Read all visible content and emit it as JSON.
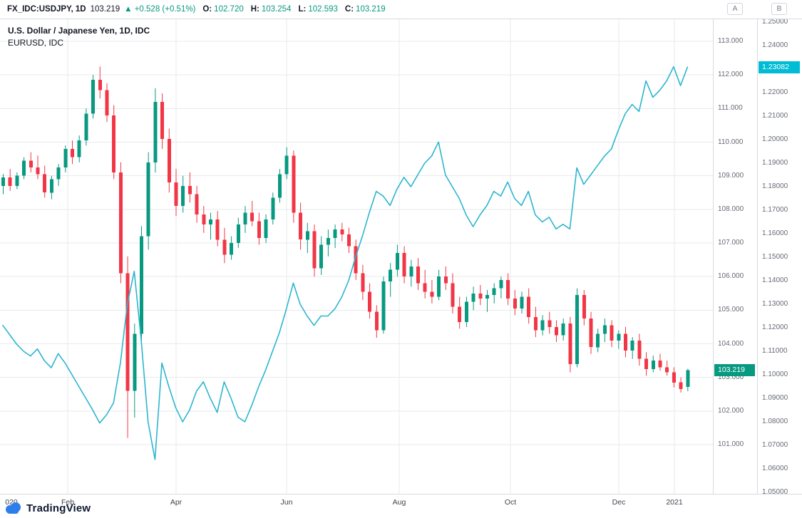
{
  "header": {
    "symbol": "FX_IDC:USDJPY, 1D",
    "last_price": "103.219",
    "change": "▲ +0.528 (+0.51%)",
    "o_label": "O:",
    "o_value": "102.720",
    "h_label": "H:",
    "h_value": "103.254",
    "l_label": "L:",
    "l_value": "102.593",
    "c_label": "C:",
    "c_value": "103.219"
  },
  "legend": {
    "line1": "U.S. Dollar / Japanese Yen, 1D, IDC",
    "line2": "EURUSD, IDC"
  },
  "colors": {
    "up": "#089981",
    "down": "#f23645",
    "line": "#2cb5cf",
    "badge_a": "#089981",
    "badge_b": "#00bcd4",
    "grid": "#e7eaee",
    "axis_text": "#676b76",
    "border": "#d6dadf"
  },
  "axes": {
    "a_labels": [
      "113.000",
      "112.000",
      "111.000",
      "110.000",
      "109.000",
      "108.000",
      "107.000",
      "106.000",
      "105.000",
      "104.000",
      "103.000",
      "102.000",
      "101.000"
    ],
    "b_labels": [
      "1.25000",
      "1.24000",
      "1.23000",
      "1.22000",
      "1.21000",
      "1.20000",
      "1.19000",
      "1.18000",
      "1.17000",
      "1.16000",
      "1.15000",
      "1.14000",
      "1.13000",
      "1.12000",
      "1.11000",
      "1.10000",
      "1.09000",
      "1.08000",
      "1.07000",
      "1.06000",
      "1.05000"
    ],
    "a_badge": "103.219",
    "b_badge": "1.23082",
    "a_button": "A",
    "b_button": "B",
    "time_labels": [
      {
        "text": "020",
        "x": 16
      },
      {
        "text": "Feb",
        "x": 95
      },
      {
        "text": "Apr",
        "x": 247
      },
      {
        "text": "Jun",
        "x": 402
      },
      {
        "text": "Aug",
        "x": 560
      },
      {
        "text": "Oct",
        "x": 716
      },
      {
        "text": "Dec",
        "x": 868
      },
      {
        "text": "2021",
        "x": 946
      }
    ]
  },
  "logo": {
    "text": "TradingView"
  },
  "chart_data": {
    "type": "mixed",
    "title": "U.S. Dollar / Japanese Yen, 1D, IDC",
    "overlay": "EURUSD, IDC",
    "grid": true,
    "legend_position": "top-left",
    "x_axis": {
      "start": "Jan 2020",
      "end": "Jan 2021",
      "tick_labels": [
        "020",
        "Feb",
        "Apr",
        "Jun",
        "Aug",
        "Oct",
        "Dec",
        "2021"
      ]
    },
    "scale_a": {
      "name": "USDJPY",
      "min": 101.0,
      "max": 113.0,
      "tick_step": 1.0,
      "last": 103.219
    },
    "scale_b": {
      "name": "EURUSD",
      "min": 1.05,
      "max": 1.25,
      "tick_step": 0.01,
      "last": 1.23082
    },
    "series": [
      {
        "name": "USD/JPY",
        "type": "candlestick",
        "scale": "A",
        "ohlc": [
          [
            108.7,
            109.05,
            108.45,
            108.95
          ],
          [
            108.95,
            109.2,
            108.55,
            108.7
          ],
          [
            108.7,
            109.1,
            108.6,
            109.0
          ],
          [
            109.0,
            109.55,
            108.9,
            109.45
          ],
          [
            109.45,
            109.7,
            109.1,
            109.25
          ],
          [
            109.25,
            109.6,
            108.9,
            109.05
          ],
          [
            109.05,
            109.3,
            108.35,
            108.5
          ],
          [
            108.5,
            109.0,
            108.3,
            108.9
          ],
          [
            108.9,
            109.35,
            108.7,
            109.25
          ],
          [
            109.25,
            109.9,
            109.1,
            109.8
          ],
          [
            109.8,
            110.05,
            109.35,
            109.55
          ],
          [
            109.55,
            110.2,
            109.4,
            110.05
          ],
          [
            110.05,
            111.0,
            109.9,
            110.85
          ],
          [
            110.85,
            112.0,
            110.7,
            111.85
          ],
          [
            111.85,
            112.25,
            111.3,
            111.55
          ],
          [
            111.55,
            111.75,
            110.6,
            110.8
          ],
          [
            110.8,
            111.1,
            108.9,
            109.1
          ],
          [
            109.1,
            109.4,
            105.8,
            106.1
          ],
          [
            106.1,
            106.6,
            101.2,
            102.6
          ],
          [
            102.6,
            104.6,
            101.8,
            104.3
          ],
          [
            104.3,
            107.5,
            103.9,
            107.2
          ],
          [
            107.2,
            109.7,
            106.8,
            109.4
          ],
          [
            109.4,
            111.6,
            109.1,
            111.2
          ],
          [
            111.2,
            111.45,
            109.8,
            110.1
          ],
          [
            110.1,
            110.4,
            108.5,
            108.8
          ],
          [
            108.8,
            109.2,
            107.8,
            108.1
          ],
          [
            108.1,
            109.0,
            107.9,
            108.7
          ],
          [
            108.7,
            109.1,
            108.2,
            108.45
          ],
          [
            108.45,
            108.7,
            107.6,
            107.85
          ],
          [
            107.85,
            108.1,
            107.3,
            107.55
          ],
          [
            107.55,
            107.9,
            107.1,
            107.7
          ],
          [
            107.7,
            107.95,
            106.9,
            107.1
          ],
          [
            107.1,
            107.45,
            106.4,
            106.65
          ],
          [
            106.65,
            107.2,
            106.5,
            107.0
          ],
          [
            107.0,
            107.75,
            106.85,
            107.55
          ],
          [
            107.55,
            108.1,
            107.3,
            107.9
          ],
          [
            107.9,
            108.25,
            107.5,
            107.65
          ],
          [
            107.65,
            107.9,
            106.95,
            107.15
          ],
          [
            107.15,
            107.85,
            107.0,
            107.7
          ],
          [
            107.7,
            108.5,
            107.55,
            108.35
          ],
          [
            108.35,
            109.2,
            108.2,
            109.05
          ],
          [
            109.05,
            109.85,
            108.9,
            109.6
          ],
          [
            109.6,
            109.75,
            107.6,
            107.9
          ],
          [
            107.9,
            108.2,
            106.8,
            107.1
          ],
          [
            107.1,
            107.6,
            106.7,
            107.35
          ],
          [
            107.35,
            107.55,
            106.0,
            106.25
          ],
          [
            106.25,
            107.2,
            106.05,
            106.95
          ],
          [
            106.95,
            107.4,
            106.6,
            107.15
          ],
          [
            107.15,
            107.55,
            106.85,
            107.4
          ],
          [
            107.4,
            107.6,
            107.05,
            107.25
          ],
          [
            107.25,
            107.45,
            106.7,
            106.9
          ],
          [
            106.9,
            107.1,
            105.9,
            106.1
          ],
          [
            106.1,
            106.35,
            105.3,
            105.55
          ],
          [
            105.55,
            105.8,
            104.75,
            104.95
          ],
          [
            104.95,
            105.15,
            104.18,
            104.4
          ],
          [
            104.4,
            106.0,
            104.3,
            105.85
          ],
          [
            105.85,
            106.4,
            105.4,
            106.2
          ],
          [
            106.2,
            106.95,
            106.0,
            106.7
          ],
          [
            106.7,
            106.9,
            105.8,
            106.0
          ],
          [
            106.0,
            106.5,
            105.7,
            106.3
          ],
          [
            106.3,
            106.55,
            105.6,
            105.8
          ],
          [
            105.8,
            106.2,
            105.35,
            105.55
          ],
          [
            105.55,
            105.9,
            105.2,
            105.4
          ],
          [
            105.4,
            106.2,
            105.3,
            106.0
          ],
          [
            106.0,
            106.3,
            105.6,
            105.8
          ],
          [
            105.8,
            106.1,
            104.9,
            105.1
          ],
          [
            105.1,
            105.4,
            104.45,
            104.65
          ],
          [
            104.65,
            105.4,
            104.5,
            105.25
          ],
          [
            105.25,
            105.7,
            105.0,
            105.5
          ],
          [
            105.5,
            105.75,
            105.15,
            105.35
          ],
          [
            105.35,
            105.6,
            104.95,
            105.45
          ],
          [
            105.45,
            105.8,
            105.2,
            105.65
          ],
          [
            105.65,
            106.0,
            105.35,
            105.9
          ],
          [
            105.9,
            106.1,
            105.15,
            105.35
          ],
          [
            105.35,
            105.6,
            104.85,
            105.05
          ],
          [
            105.05,
            105.55,
            104.9,
            105.4
          ],
          [
            105.4,
            105.65,
            104.6,
            104.8
          ],
          [
            104.8,
            105.1,
            104.2,
            104.4
          ],
          [
            104.4,
            104.85,
            104.25,
            104.7
          ],
          [
            104.7,
            104.95,
            104.3,
            104.5
          ],
          [
            104.5,
            104.7,
            104.05,
            104.25
          ],
          [
            104.25,
            104.75,
            104.1,
            104.6
          ],
          [
            104.6,
            104.8,
            103.15,
            103.4
          ],
          [
            103.4,
            105.65,
            103.3,
            105.45
          ],
          [
            105.45,
            105.6,
            104.55,
            104.75
          ],
          [
            104.75,
            104.95,
            103.7,
            103.9
          ],
          [
            103.9,
            104.45,
            103.75,
            104.3
          ],
          [
            104.3,
            104.75,
            104.05,
            104.55
          ],
          [
            104.55,
            104.7,
            103.9,
            104.1
          ],
          [
            104.1,
            104.4,
            103.85,
            104.3
          ],
          [
            104.3,
            104.5,
            103.6,
            103.8
          ],
          [
            103.8,
            104.2,
            103.55,
            104.1
          ],
          [
            104.1,
            104.3,
            103.35,
            103.55
          ],
          [
            103.55,
            103.75,
            103.05,
            103.25
          ],
          [
            103.25,
            103.65,
            103.15,
            103.5
          ],
          [
            103.5,
            103.7,
            103.2,
            103.3
          ],
          [
            103.3,
            103.5,
            103.05,
            103.15
          ],
          [
            103.15,
            103.3,
            102.7,
            102.85
          ],
          [
            102.85,
            103.0,
            102.55,
            102.65
          ],
          [
            102.72,
            103.254,
            102.593,
            103.219
          ]
        ]
      },
      {
        "name": "EURUSD",
        "type": "line",
        "scale": "B",
        "values": [
          1.121,
          1.117,
          1.113,
          1.11,
          1.108,
          1.111,
          1.106,
          1.103,
          1.109,
          1.105,
          1.1,
          1.095,
          1.09,
          1.085,
          1.0795,
          1.083,
          1.088,
          1.105,
          1.13,
          1.144,
          1.115,
          1.08,
          1.064,
          1.105,
          1.095,
          1.086,
          1.08,
          1.085,
          1.093,
          1.097,
          1.09,
          1.084,
          1.097,
          1.09,
          1.082,
          1.08,
          1.087,
          1.095,
          1.102,
          1.11,
          1.118,
          1.128,
          1.139,
          1.13,
          1.125,
          1.121,
          1.125,
          1.125,
          1.128,
          1.133,
          1.14,
          1.15,
          1.159,
          1.169,
          1.178,
          1.176,
          1.172,
          1.179,
          1.184,
          1.18,
          1.185,
          1.19,
          1.193,
          1.199,
          1.185,
          1.18,
          1.175,
          1.168,
          1.163,
          1.168,
          1.172,
          1.178,
          1.176,
          1.182,
          1.175,
          1.172,
          1.178,
          1.168,
          1.165,
          1.167,
          1.162,
          1.164,
          1.162,
          1.188,
          1.181,
          1.185,
          1.189,
          1.193,
          1.196,
          1.204,
          1.211,
          1.215,
          1.212,
          1.225,
          1.218,
          1.221,
          1.225,
          1.231,
          1.223,
          1.23082
        ]
      }
    ]
  }
}
